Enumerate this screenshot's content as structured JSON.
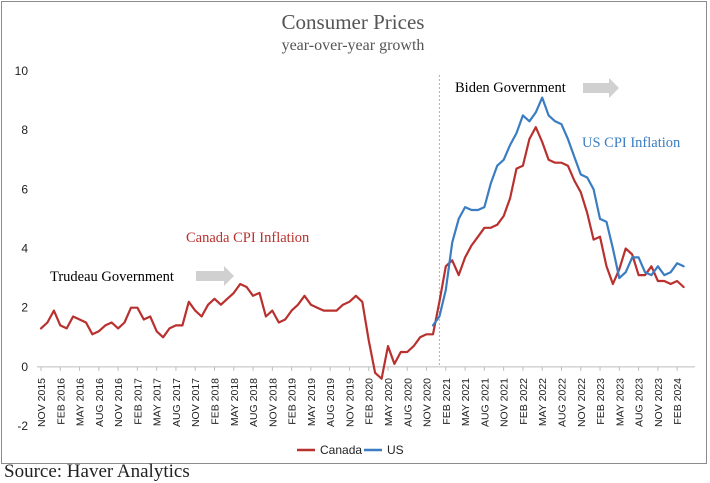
{
  "chart_data": {
    "type": "line",
    "title": "Consumer Prices",
    "subtitle": "year-over-year growth",
    "ylim": [
      -2,
      10
    ],
    "yticks": [
      -2,
      0,
      2,
      4,
      6,
      8,
      10
    ],
    "xtick_labels": [
      "NOV 2015",
      "FEB 2016",
      "MAY 2016",
      "AUG 2016",
      "NOV 2016",
      "FEB 2017",
      "MAY 2017",
      "AUG 2017",
      "NOV 2017",
      "FEB 2018",
      "MAY 2018",
      "AUG 2018",
      "NOV 2018",
      "FEB 2019",
      "MAY 2019",
      "AUG 2019",
      "NOV 2019",
      "FEB 2020",
      "MAY 2020",
      "AUG 2020",
      "NOV 2020",
      "FEB 2021",
      "MAY 2021",
      "AUG 2021",
      "NOV 2021",
      "FEB 2022",
      "MAY 2022",
      "AUG 2022",
      "NOV 2022",
      "FEB 2023",
      "MAY 2023",
      "AUG 2023",
      "NOV 2023",
      "FEB 2024"
    ],
    "x_start": "2015-11",
    "x_end": "2024-04",
    "series": [
      {
        "name": "Canada",
        "color": "#b8312f",
        "start": "2015-11",
        "values": [
          1.3,
          1.5,
          1.9,
          1.4,
          1.3,
          1.7,
          1.6,
          1.5,
          1.1,
          1.2,
          1.4,
          1.5,
          1.3,
          1.5,
          2.0,
          2.0,
          1.6,
          1.7,
          1.2,
          1.0,
          1.3,
          1.4,
          1.4,
          2.2,
          1.9,
          1.7,
          2.1,
          2.3,
          2.1,
          2.3,
          2.5,
          2.8,
          2.7,
          2.4,
          2.5,
          1.7,
          1.9,
          1.5,
          1.6,
          1.9,
          2.1,
          2.4,
          2.1,
          2.0,
          1.9,
          1.9,
          1.9,
          2.1,
          2.2,
          2.4,
          2.2,
          0.9,
          -0.2,
          -0.4,
          0.7,
          0.1,
          0.5,
          0.5,
          0.7,
          1.0,
          1.1,
          1.1,
          2.2,
          3.4,
          3.6,
          3.1,
          3.7,
          4.1,
          4.4,
          4.7,
          4.7,
          4.8,
          5.1,
          5.7,
          6.7,
          6.8,
          7.7,
          8.1,
          7.6,
          7.0,
          6.9,
          6.9,
          6.8,
          6.3,
          5.9,
          5.2,
          4.3,
          4.4,
          3.4,
          2.8,
          3.3,
          4.0,
          3.8,
          3.1,
          3.1,
          3.4,
          2.9,
          2.9,
          2.8,
          2.9,
          2.7
        ]
      },
      {
        "name": "US",
        "color": "#3a7dc2",
        "start": "2020-12",
        "values": [
          1.4,
          1.7,
          2.6,
          4.2,
          5.0,
          5.4,
          5.3,
          5.3,
          5.4,
          6.2,
          6.8,
          7.0,
          7.5,
          7.9,
          8.5,
          8.3,
          8.6,
          9.1,
          8.5,
          8.3,
          8.2,
          7.7,
          7.1,
          6.5,
          6.4,
          6.0,
          5.0,
          4.9,
          4.0,
          3.0,
          3.2,
          3.7,
          3.7,
          3.2,
          3.1,
          3.4,
          3.1,
          3.2,
          3.5,
          3.4
        ]
      }
    ],
    "annotations": [
      {
        "text": "Canada CPI Inflation",
        "color": "#b8312f"
      },
      {
        "text": "US CPI Inflation",
        "color": "#3a7dc2"
      },
      {
        "text": "Trudeau Government",
        "color": "#000000"
      },
      {
        "text": "Biden Government",
        "color": "#000000"
      }
    ],
    "legend": {
      "position": "bottom",
      "entries": [
        "Canada",
        "US"
      ]
    },
    "grid": false,
    "vline_at": "2021-01",
    "colors": {
      "arrow": "#d0d0d0",
      "frame": "#8c8c8c",
      "zero_line": "#bdbdbd",
      "vline": "#b0b0b0"
    }
  },
  "source_text": "Source: Haver Analytics"
}
